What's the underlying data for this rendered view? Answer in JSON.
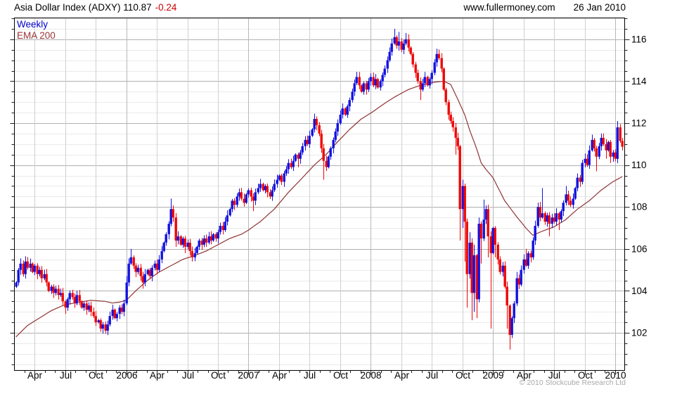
{
  "header": {
    "title": "Asia Dollar Index (ADXY) 110.87",
    "change": "-0.24",
    "website": "www.fullermoney.com",
    "date": "26 Jan 2010"
  },
  "legend": {
    "timeframe": "Weekly",
    "overlay": "EMA 200"
  },
  "footer": {
    "copyright": "© 2010 Stockcube Research Ltd"
  },
  "colors": {
    "up": "#1212e0",
    "down": "#ee0505",
    "ema": "#8e3434",
    "grid_major": "#b0b0b0",
    "grid_minor": "#eaeaea",
    "grid_quarter": "#d0d0d0",
    "grid_year": "#b8b8b8",
    "axis": "#000000",
    "tick": "#222222",
    "label": "#000000"
  },
  "chart_data": {
    "type": "candlestick",
    "title": "Asia Dollar Index (ADXY)",
    "timeframe": "Weekly",
    "overlay": "EMA 200",
    "last_price": 110.87,
    "change": -0.24,
    "y_axis": {
      "labels": [
        102,
        104,
        106,
        108,
        110,
        112,
        114,
        116
      ],
      "minor_step": 0.5,
      "major_step": 2,
      "min_visible": 100.4,
      "max_visible": 117.0
    },
    "x_axis": {
      "ticks": [
        {
          "i": 8,
          "label": "Apr"
        },
        {
          "i": 21,
          "label": "Jul"
        },
        {
          "i": 34,
          "label": "Oct"
        },
        {
          "i": 47,
          "label": "2006"
        },
        {
          "i": 60,
          "label": "Apr"
        },
        {
          "i": 73,
          "label": "Jul"
        },
        {
          "i": 86,
          "label": "Oct"
        },
        {
          "i": 99,
          "label": "2007"
        },
        {
          "i": 112,
          "label": "Apr"
        },
        {
          "i": 125,
          "label": "Jul"
        },
        {
          "i": 138,
          "label": "Oct"
        },
        {
          "i": 151,
          "label": "2008"
        },
        {
          "i": 164,
          "label": "Apr"
        },
        {
          "i": 177,
          "label": "Jul"
        },
        {
          "i": 190,
          "label": "Oct"
        },
        {
          "i": 203,
          "label": "2009"
        },
        {
          "i": 216,
          "label": "Apr"
        },
        {
          "i": 229,
          "label": "Jul"
        },
        {
          "i": 242,
          "label": "Oct"
        },
        {
          "i": 255,
          "label": "2010"
        }
      ],
      "weeks_per_month": 4.3333
    },
    "weeks": [
      [
        104.4
      ],
      [
        105.0
      ],
      [
        105.3,
        105.55,
        null
      ],
      [
        104.8
      ],
      [
        105.4,
        105.65,
        null
      ],
      [
        105.1
      ],
      [
        105.3
      ],
      [
        104.9
      ],
      [
        105.2
      ],
      [
        104.8
      ],
      [
        105.0
      ],
      [
        104.6
      ],
      [
        104.8
      ],
      [
        104.4
      ],
      [
        104.0
      ],
      [
        104.2
      ],
      [
        103.9
      ],
      [
        104.1
      ],
      [
        103.8
      ],
      [
        103.9
      ],
      [
        103.5
      ],
      [
        103.2,
        null,
        102.9
      ],
      [
        103.6
      ],
      [
        103.9
      ],
      [
        103.7
      ],
      [
        103.4
      ],
      [
        103.8
      ],
      [
        103.5
      ],
      [
        103.2
      ],
      [
        103.4
      ],
      [
        103.1
      ],
      [
        103.3
      ],
      [
        103.0
      ],
      [
        102.8
      ],
      [
        102.5
      ],
      [
        102.6
      ],
      [
        102.2
      ],
      [
        102.4
      ],
      [
        102.1,
        null,
        101.95
      ],
      [
        102.4
      ],
      [
        102.8
      ],
      [
        103.1
      ],
      [
        102.7
      ],
      [
        102.9
      ],
      [
        103.2
      ],
      [
        103.0
      ],
      [
        103.4
      ],
      [
        104.4,
        104.7,
        null
      ],
      [
        105.3
      ],
      [
        105.6,
        106.0,
        null
      ],
      [
        105.2
      ],
      [
        104.9
      ],
      [
        105.1
      ],
      [
        104.7
      ],
      [
        104.4,
        null,
        104.1
      ],
      [
        104.8
      ],
      [
        105.0
      ],
      [
        104.7
      ],
      [
        105.1
      ],
      [
        105.3
      ],
      [
        105.0
      ],
      [
        105.5
      ],
      [
        105.9
      ],
      [
        106.3
      ],
      [
        106.7
      ],
      [
        107.2
      ],
      [
        107.9,
        108.4,
        null
      ],
      [
        107.5
      ],
      [
        106.4,
        null,
        106.1
      ],
      [
        106.6
      ],
      [
        106.2
      ],
      [
        106.5
      ],
      [
        106.1,
        null,
        105.8
      ],
      [
        106.3
      ],
      [
        105.9
      ],
      [
        105.6,
        null,
        105.4
      ],
      [
        105.8
      ],
      [
        106.1
      ],
      [
        106.4
      ],
      [
        106.2
      ],
      [
        106.5
      ],
      [
        106.3
      ],
      [
        106.6
      ],
      [
        106.4
      ],
      [
        106.7
      ],
      [
        106.5
      ],
      [
        106.8
      ],
      [
        107.1
      ],
      [
        106.9
      ],
      [
        107.3
      ],
      [
        107.6
      ],
      [
        107.9
      ],
      [
        108.3
      ],
      [
        108.1
      ],
      [
        108.5
      ],
      [
        108.7
      ],
      [
        108.4
      ],
      [
        108.2
      ],
      [
        108.6
      ],
      [
        108.8
      ],
      [
        108.5
      ],
      [
        108.3,
        null,
        107.8
      ],
      [
        108.7
      ],
      [
        108.9
      ],
      [
        109.1
      ],
      [
        108.8
      ],
      [
        109.0
      ],
      [
        108.7
      ],
      [
        108.5
      ],
      [
        108.8
      ],
      [
        109.1
      ],
      [
        109.3
      ],
      [
        109.5
      ],
      [
        109.2
      ],
      [
        109.6
      ],
      [
        109.8
      ],
      [
        110.1
      ],
      [
        109.9
      ],
      [
        110.2
      ],
      [
        110.5
      ],
      [
        110.3,
        null,
        109.9
      ],
      [
        110.6
      ],
      [
        110.9
      ],
      [
        111.2
      ],
      [
        111.0
      ],
      [
        111.4
      ],
      [
        111.7
      ],
      [
        112.2,
        112.45,
        null
      ],
      [
        111.9
      ],
      [
        111.5
      ],
      [
        110.8
      ],
      [
        110.2,
        null,
        109.3
      ],
      [
        109.9
      ],
      [
        110.4
      ],
      [
        110.8
      ],
      [
        111.2
      ],
      [
        111.6
      ],
      [
        112.0
      ],
      [
        112.4
      ],
      [
        112.7
      ],
      [
        112.4
      ],
      [
        112.8
      ],
      [
        113.1
      ],
      [
        113.5
      ],
      [
        113.9
      ],
      [
        114.2,
        114.45,
        null
      ],
      [
        113.8
      ],
      [
        113.5
      ],
      [
        113.9
      ],
      [
        113.6
      ],
      [
        114.0
      ],
      [
        114.2
      ],
      [
        113.8
      ],
      [
        114.1
      ],
      [
        113.7
      ],
      [
        114.0
      ],
      [
        114.3
      ],
      [
        114.6
      ],
      [
        115.0
      ],
      [
        115.4
      ],
      [
        115.8
      ],
      [
        116.1,
        116.5,
        null
      ],
      [
        115.7
      ],
      [
        115.9,
        116.35,
        null
      ],
      [
        115.5
      ],
      [
        115.8
      ],
      [
        116.0,
        116.3,
        null
      ],
      [
        115.6
      ],
      [
        115.3
      ],
      [
        114.8
      ],
      [
        114.4
      ],
      [
        114.0
      ],
      [
        113.6,
        null,
        113.1
      ],
      [
        113.9
      ],
      [
        114.2
      ],
      [
        113.8
      ],
      [
        114.1
      ],
      [
        114.4
      ],
      [
        114.9
      ],
      [
        115.3,
        115.55,
        null
      ],
      [
        115.1
      ],
      [
        114.6
      ],
      [
        113.6
      ],
      [
        113.0
      ],
      [
        112.4
      ],
      [
        112.1
      ],
      [
        111.8
      ],
      [
        111.3,
        null,
        110.5
      ],
      [
        110.9
      ],
      [
        107.9,
        null,
        106.4
      ],
      [
        109.0,
        109.3,
        107.0
      ],
      [
        107.3,
        null,
        105.4
      ],
      [
        104.8,
        null,
        103.2
      ],
      [
        106.3,
        106.8,
        null
      ],
      [
        103.9,
        null,
        102.6
      ],
      [
        105.7,
        106.2,
        103.0
      ],
      [
        103.6,
        null,
        102.7
      ],
      [
        107.2,
        107.5,
        null
      ],
      [
        106.5,
        null,
        105.3
      ],
      [
        107.4,
        108.35,
        null
      ],
      [
        107.9
      ],
      [
        106.6,
        null,
        105.6
      ],
      [
        105.8,
        null,
        102.2
      ],
      [
        107.0
      ],
      [
        106.2,
        null,
        105.6
      ],
      [
        105.5
      ],
      [
        104.9
      ],
      [
        105.2
      ],
      [
        104.2
      ],
      [
        103.3,
        null,
        102.2
      ],
      [
        101.9,
        null,
        101.2
      ],
      [
        102.7
      ],
      [
        103.4
      ],
      [
        104.6,
        104.9,
        null
      ],
      [
        104.3
      ],
      [
        105.0
      ],
      [
        105.5
      ],
      [
        105.2,
        106.0,
        null
      ],
      [
        105.8
      ],
      [
        105.6
      ],
      [
        106.4
      ],
      [
        107.1,
        107.35,
        null
      ],
      [
        108.0
      ],
      [
        107.5
      ],
      [
        107.7,
        108.9,
        null
      ],
      [
        107.3
      ],
      [
        107.6
      ],
      [
        107.2,
        null,
        106.6
      ],
      [
        107.5
      ],
      [
        107.3
      ],
      [
        107.7
      ],
      [
        107.4,
        null,
        106.9
      ],
      [
        107.8
      ],
      [
        108.2
      ],
      [
        108.6,
        109.0,
        null
      ],
      [
        108.3
      ],
      [
        108.1
      ],
      [
        108.4
      ],
      [
        108.9
      ],
      [
        109.4,
        109.6,
        null
      ],
      [
        109.2
      ],
      [
        110.1
      ],
      [
        110.3,
        110.55,
        null
      ],
      [
        110.0
      ],
      [
        110.7
      ],
      [
        111.2,
        111.45,
        null
      ],
      [
        110.8
      ],
      [
        110.4,
        null,
        109.7
      ],
      [
        110.9
      ],
      [
        111.3,
        111.5,
        null
      ],
      [
        111.0
      ],
      [
        110.7,
        null,
        110.3
      ],
      [
        111.1
      ],
      [
        110.4,
        null,
        110.1
      ],
      [
        110.6
      ],
      [
        110.3
      ],
      [
        111.8,
        112.1,
        null
      ],
      [
        111.15,
        111.95,
        null
      ],
      [
        110.87,
        111.3,
        110.7
      ]
    ],
    "ema_anchors": [
      [
        0,
        101.8
      ],
      [
        5,
        102.35
      ],
      [
        10,
        102.7
      ],
      [
        15,
        103.05
      ],
      [
        20,
        103.3
      ],
      [
        26,
        103.45
      ],
      [
        32,
        103.55
      ],
      [
        38,
        103.5
      ],
      [
        41,
        103.42
      ],
      [
        44,
        103.46
      ],
      [
        47,
        103.55
      ],
      [
        51,
        104.0
      ],
      [
        56,
        104.5
      ],
      [
        61,
        104.9
      ],
      [
        66,
        105.2
      ],
      [
        71,
        105.5
      ],
      [
        76,
        105.68
      ],
      [
        81,
        105.9
      ],
      [
        86,
        106.2
      ],
      [
        91,
        106.5
      ],
      [
        96,
        106.7
      ],
      [
        99,
        106.9
      ],
      [
        104,
        107.3
      ],
      [
        110,
        107.9
      ],
      [
        116,
        108.7
      ],
      [
        122,
        109.4
      ],
      [
        127,
        110.0
      ],
      [
        132,
        110.5
      ],
      [
        136,
        111.0
      ],
      [
        142,
        111.7
      ],
      [
        147,
        112.2
      ],
      [
        152,
        112.55
      ],
      [
        157,
        112.95
      ],
      [
        162,
        113.3
      ],
      [
        167,
        113.6
      ],
      [
        172,
        113.8
      ],
      [
        178,
        113.95
      ],
      [
        182,
        114.0
      ],
      [
        185,
        113.85
      ],
      [
        188,
        113.15
      ],
      [
        191,
        112.4
      ],
      [
        193,
        111.7
      ],
      [
        196,
        110.8
      ],
      [
        198,
        110.1
      ],
      [
        200,
        109.8
      ],
      [
        203,
        109.4
      ],
      [
        208,
        108.3
      ],
      [
        213,
        107.55
      ],
      [
        217,
        107.0
      ],
      [
        220,
        106.65
      ],
      [
        224,
        106.85
      ],
      [
        229,
        107.05
      ],
      [
        234,
        107.4
      ],
      [
        239,
        107.9
      ],
      [
        244,
        108.3
      ],
      [
        249,
        108.8
      ],
      [
        254,
        109.2
      ],
      [
        258,
        109.45
      ]
    ]
  }
}
